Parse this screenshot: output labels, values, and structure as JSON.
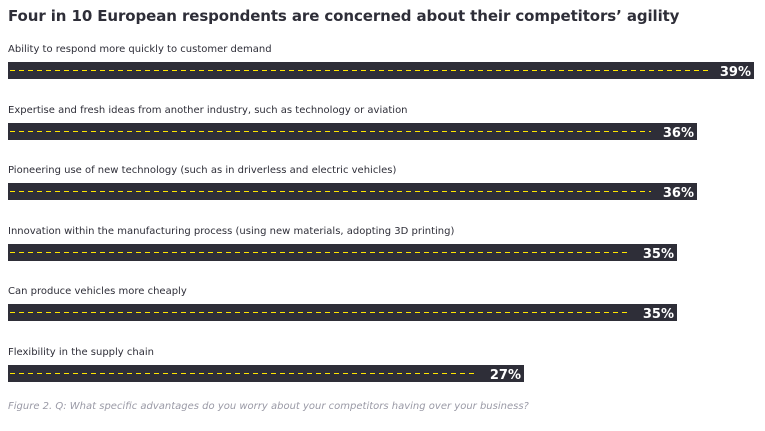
{
  "colors": {
    "bar": "#2e2e38",
    "dash": "#ffe600",
    "value_text": "#ffffff",
    "label_text": "#2e2e38",
    "caption_text": "#9a9aa6"
  },
  "chart_data": {
    "type": "bar",
    "orientation": "horizontal",
    "title": "Four in 10 European respondents are concerned about their competitors’ agility",
    "caption": "Figure 2. Q: What specific advantages do you worry about your competitors having over your business?",
    "categories": [
      "Ability to respond more quickly to customer demand",
      "Expertise and fresh ideas from another industry, such as technology or aviation",
      "Pioneering use of new technology (such as in driverless and electric vehicles)",
      "Innovation within the manufacturing process (using new materials, adopting 3D printing)",
      "Can produce vehicles more cheaply",
      "Flexibility in the supply chain"
    ],
    "values": [
      39,
      36,
      36,
      35,
      35,
      27
    ],
    "value_labels": [
      "39%",
      "36%",
      "36%",
      "35%",
      "35%",
      "27%"
    ],
    "unit": "%",
    "xlim": [
      0,
      39
    ],
    "grid": false,
    "legend": "none"
  }
}
